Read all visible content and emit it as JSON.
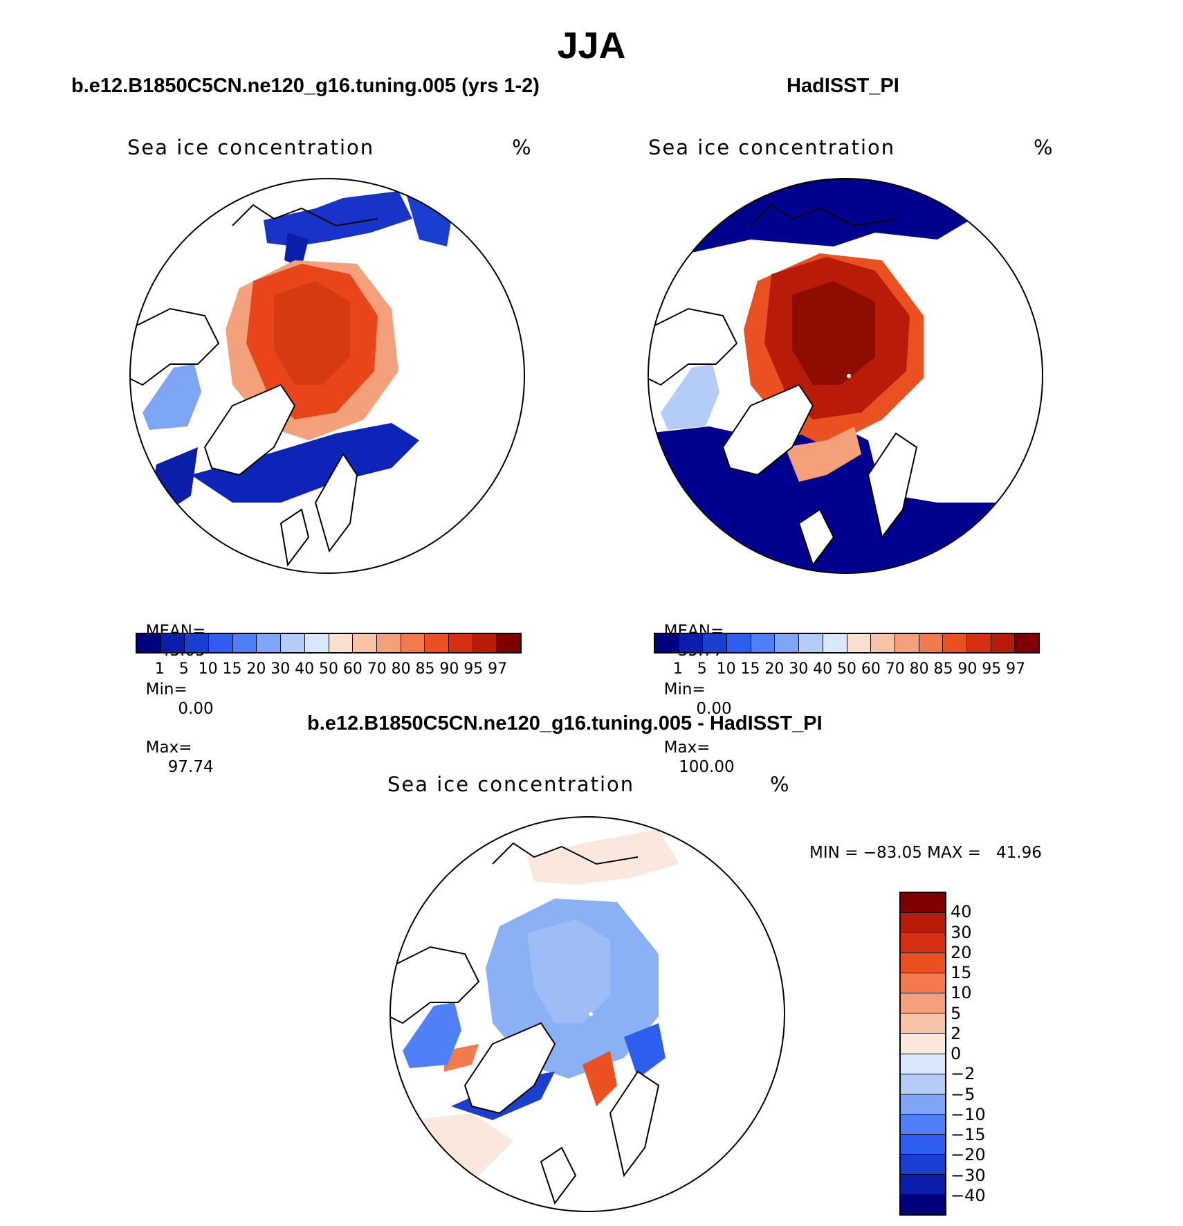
{
  "title": "JJA",
  "panels": [
    {
      "id": "model",
      "header": "b.e12.B1850C5CN.ne120_g16.tuning.005 (yrs 1-2)",
      "variable": "Sea ice concentration",
      "units": "%",
      "stats": {
        "mean_label": "MEAN=",
        "mean": "43.03",
        "min_label": "Min=",
        "min": "0.00",
        "max_label": "Max=",
        "max": "97.74"
      }
    },
    {
      "id": "obs",
      "header": "HadISST_PI",
      "variable": "Sea ice concentration",
      "units": "%",
      "stats": {
        "mean_label": "MEAN=",
        "mean": "35.77",
        "min_label": "Min=",
        "min": "0.00",
        "max_label": "Max=",
        "max": "100.00"
      }
    },
    {
      "id": "diff",
      "header": "b.e12.B1850C5CN.ne120_g16.tuning.005 - HadISST_PI",
      "variable": "Sea ice concentration",
      "units": "%",
      "minmax": "MIN = −83.05 MAX =   41.96"
    }
  ],
  "colorbar_levels": [
    "1",
    "5",
    "10",
    "15",
    "20",
    "30",
    "40",
    "50",
    "60",
    "70",
    "80",
    "85",
    "90",
    "95",
    "97"
  ],
  "colorbar_colors": [
    "#00007f",
    "#0a1eaa",
    "#1a3fd0",
    "#2e5ef0",
    "#4f80f7",
    "#7ea6f7",
    "#b3ccf8",
    "#d9e8fa",
    "#fbe0d0",
    "#f8c4a8",
    "#f4a07a",
    "#f27a4d",
    "#ea5020",
    "#d63010",
    "#b81c08",
    "#7f0000"
  ],
  "diff_colorbar_levels": [
    "40",
    "30",
    "20",
    "15",
    "10",
    "5",
    "2",
    "0",
    "−2",
    "−5",
    "−10",
    "−15",
    "−20",
    "−30",
    "−40"
  ],
  "diff_colorbar_colors": [
    "#7f0000",
    "#b81c08",
    "#d63010",
    "#ea5020",
    "#f27a4d",
    "#f4a07a",
    "#f8c4a8",
    "#fbe8dc",
    "#d9e8fa",
    "#b3ccf8",
    "#7ea6f7",
    "#4f80f7",
    "#2e5ef0",
    "#1a3fd0",
    "#0a1eaa",
    "#00007f"
  ],
  "colors": {
    "ice_high": "#e8461a",
    "ice_max": "#a01a05",
    "open_ocean": "#00008f",
    "diff_neg": "#8ab0f5",
    "diff_pos": "#f4a07a",
    "land": "#ffffff",
    "coast": "#000000"
  }
}
